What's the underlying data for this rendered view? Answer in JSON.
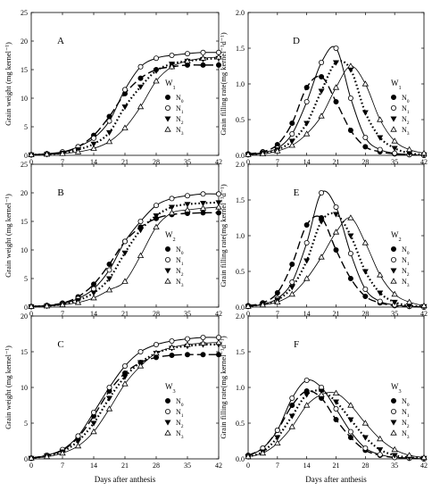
{
  "figure": {
    "xlabel": "Days after anthesis",
    "left_ylabel": "Grain weight (mg kernel⁻¹)",
    "right_ylabel": "Grain filling rate(mg kernel⁻¹d⁻¹)",
    "x_ticks": [
      "0",
      "7",
      "14",
      "21",
      "28",
      "35",
      "42"
    ],
    "left_y_ticks": [
      "0",
      "5",
      "10",
      "15",
      "20",
      "25"
    ],
    "right_y_ticks": [
      "0.0",
      "0.5",
      "1.0",
      "1.5",
      "2.0"
    ],
    "legend_labels": [
      "N₀",
      "N₁",
      "N₂",
      "N₃"
    ],
    "legend_markers": [
      "filled-circle",
      "open-circle",
      "filled-triangle-down",
      "open-triangle-up"
    ],
    "line_styles": [
      "long-dash",
      "solid",
      "dotted",
      "solid-thin"
    ]
  },
  "chart_data": [
    {
      "type": "line",
      "panel": "A",
      "water": "W₁",
      "ylim": [
        0,
        25
      ],
      "xlim": [
        0,
        42
      ],
      "x": [
        0,
        3.5,
        7,
        10.5,
        14,
        17.5,
        21,
        24.5,
        28,
        31.5,
        35,
        38.5,
        42
      ],
      "series": [
        {
          "name": "N₀",
          "values": [
            0.1,
            0.2,
            0.5,
            1.5,
            3.5,
            6.8,
            10.8,
            13.5,
            15.0,
            15.5,
            15.8,
            15.8,
            15.8
          ]
        },
        {
          "name": "N₁",
          "values": [
            0.1,
            0.3,
            0.6,
            1.5,
            3.0,
            6.0,
            11.5,
            15.5,
            17.0,
            17.5,
            17.8,
            18.0,
            18.0
          ]
        },
        {
          "name": "N₂",
          "values": [
            0.1,
            0.2,
            0.4,
            1.0,
            2.0,
            4.0,
            8.5,
            12.0,
            14.8,
            16.0,
            16.5,
            16.8,
            17.0
          ]
        },
        {
          "name": "N₃",
          "values": [
            0.1,
            0.2,
            0.3,
            0.6,
            1.2,
            2.4,
            4.8,
            8.5,
            13.0,
            15.5,
            16.5,
            17.0,
            17.2
          ]
        }
      ]
    },
    {
      "type": "line",
      "panel": "D",
      "water": "W₁",
      "ylim": [
        0,
        2.0
      ],
      "xlim": [
        0,
        42
      ],
      "x": [
        0,
        3.5,
        7,
        10.5,
        14,
        17.5,
        21,
        24.5,
        28,
        31.5,
        35,
        38.5,
        42
      ],
      "series": [
        {
          "name": "N₀",
          "values": [
            0.02,
            0.05,
            0.15,
            0.45,
            0.95,
            1.1,
            0.75,
            0.35,
            0.12,
            0.05,
            0.02,
            0.01,
            0.0
          ]
        },
        {
          "name": "N₁",
          "values": [
            0.01,
            0.04,
            0.1,
            0.3,
            0.75,
            1.3,
            1.5,
            0.8,
            0.25,
            0.08,
            0.03,
            0.01,
            0.0
          ]
        },
        {
          "name": "N₂",
          "values": [
            0.01,
            0.03,
            0.08,
            0.2,
            0.45,
            0.9,
            1.3,
            1.2,
            0.6,
            0.25,
            0.1,
            0.03,
            0.01
          ]
        },
        {
          "name": "N₃",
          "values": [
            0.01,
            0.02,
            0.06,
            0.14,
            0.3,
            0.55,
            0.95,
            1.25,
            1.0,
            0.5,
            0.2,
            0.08,
            0.03
          ]
        }
      ]
    },
    {
      "type": "line",
      "panel": "B",
      "water": "W₂",
      "ylim": [
        0,
        25
      ],
      "xlim": [
        0,
        42
      ],
      "x": [
        0,
        3.5,
        7,
        10.5,
        14,
        17.5,
        21,
        24.5,
        28,
        31.5,
        35,
        38.5,
        42
      ],
      "series": [
        {
          "name": "N₀",
          "values": [
            0.1,
            0.3,
            0.7,
            1.8,
            4.0,
            7.5,
            11.5,
            14.0,
            15.5,
            16.2,
            16.4,
            16.5,
            16.5
          ]
        },
        {
          "name": "N₁",
          "values": [
            0.1,
            0.3,
            0.6,
            1.5,
            3.2,
            6.5,
            11.5,
            15.0,
            17.8,
            19.0,
            19.5,
            19.8,
            19.8
          ]
        },
        {
          "name": "N₂",
          "values": [
            0.1,
            0.2,
            0.5,
            1.2,
            2.5,
            5.0,
            9.5,
            13.5,
            16.0,
            17.5,
            18.0,
            18.2,
            18.3
          ]
        },
        {
          "name": "N₃",
          "values": [
            0.1,
            0.2,
            0.4,
            0.8,
            1.6,
            3.0,
            4.5,
            9.0,
            14.0,
            16.5,
            17.0,
            17.3,
            17.5
          ]
        }
      ]
    },
    {
      "type": "line",
      "panel": "E",
      "water": "W₂",
      "ylim": [
        0,
        2.0
      ],
      "xlim": [
        0,
        42
      ],
      "x": [
        0,
        3.5,
        7,
        10.5,
        14,
        17.5,
        21,
        24.5,
        28,
        31.5,
        35,
        38.5,
        42
      ],
      "series": [
        {
          "name": "N₀",
          "values": [
            0.02,
            0.06,
            0.2,
            0.6,
            1.15,
            1.25,
            0.8,
            0.4,
            0.15,
            0.06,
            0.02,
            0.01,
            0.0
          ]
        },
        {
          "name": "N₁",
          "values": [
            0.01,
            0.04,
            0.12,
            0.35,
            0.9,
            1.6,
            1.4,
            0.75,
            0.25,
            0.08,
            0.03,
            0.01,
            0.0
          ]
        },
        {
          "name": "N₂",
          "values": [
            0.01,
            0.04,
            0.1,
            0.28,
            0.65,
            1.2,
            1.3,
            1.0,
            0.5,
            0.2,
            0.07,
            0.02,
            0.01
          ]
        },
        {
          "name": "N₃",
          "values": [
            0.01,
            0.03,
            0.07,
            0.18,
            0.4,
            0.7,
            1.05,
            1.25,
            0.9,
            0.45,
            0.18,
            0.07,
            0.02
          ]
        }
      ]
    },
    {
      "type": "line",
      "panel": "C",
      "water": "W₃",
      "ylim": [
        0,
        20
      ],
      "xlim": [
        0,
        42
      ],
      "x": [
        0,
        3.5,
        7,
        10.5,
        14,
        17.5,
        21,
        24.5,
        28,
        31.5,
        35,
        38.5,
        42
      ],
      "series": [
        {
          "name": "N₀",
          "values": [
            0.1,
            0.5,
            1.2,
            3.0,
            6.0,
            9.5,
            12.0,
            13.5,
            14.2,
            14.5,
            14.6,
            14.6,
            14.6
          ]
        },
        {
          "name": "N₁",
          "values": [
            0.1,
            0.5,
            1.3,
            3.2,
            6.5,
            10.0,
            13.0,
            15.0,
            16.0,
            16.5,
            16.8,
            17.0,
            17.0
          ]
        },
        {
          "name": "N₂",
          "values": [
            0.1,
            0.4,
            1.0,
            2.5,
            5.0,
            8.5,
            11.5,
            13.5,
            14.8,
            15.5,
            15.8,
            16.0,
            16.0
          ]
        },
        {
          "name": "N₃",
          "values": [
            0.1,
            0.3,
            0.8,
            1.8,
            3.8,
            7.0,
            10.5,
            13.0,
            14.8,
            15.6,
            16.0,
            16.2,
            16.3
          ]
        }
      ]
    },
    {
      "type": "line",
      "panel": "F",
      "water": "W₃",
      "ylim": [
        0,
        2.0
      ],
      "xlim": [
        0,
        42
      ],
      "x": [
        0,
        3.5,
        7,
        10.5,
        14,
        17.5,
        21,
        24.5,
        28,
        31.5,
        35,
        38.5,
        42
      ],
      "series": [
        {
          "name": "N₀",
          "values": [
            0.05,
            0.15,
            0.4,
            0.75,
            0.95,
            0.85,
            0.55,
            0.3,
            0.12,
            0.05,
            0.02,
            0.01,
            0.0
          ]
        },
        {
          "name": "N₁",
          "values": [
            0.04,
            0.15,
            0.4,
            0.85,
            1.1,
            1.0,
            0.7,
            0.38,
            0.15,
            0.06,
            0.02,
            0.01,
            0.0
          ]
        },
        {
          "name": "N₂",
          "values": [
            0.03,
            0.1,
            0.3,
            0.6,
            0.9,
            0.95,
            0.8,
            0.55,
            0.3,
            0.13,
            0.05,
            0.02,
            0.01
          ]
        },
        {
          "name": "N₃",
          "values": [
            0.03,
            0.08,
            0.22,
            0.45,
            0.75,
            0.9,
            0.92,
            0.75,
            0.5,
            0.28,
            0.13,
            0.05,
            0.02
          ]
        }
      ]
    }
  ]
}
